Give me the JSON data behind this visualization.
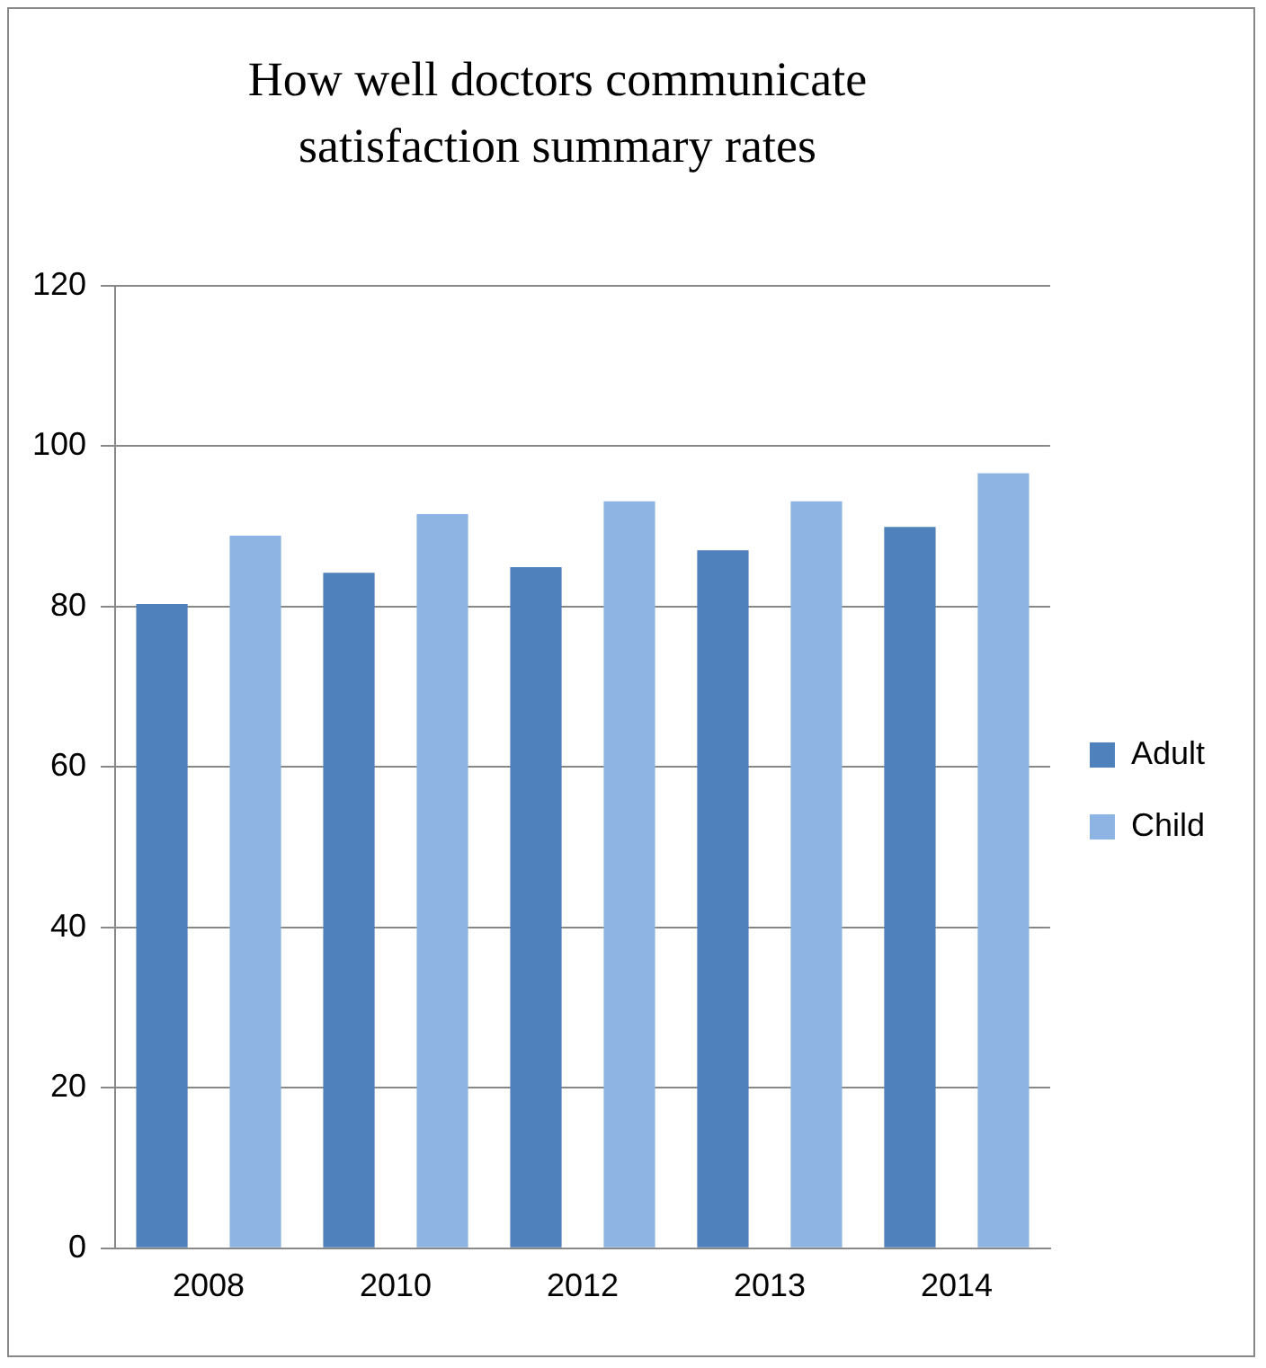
{
  "chart_data": {
    "type": "bar",
    "title": "How well doctors communicate satisfaction summary rates",
    "categories": [
      "2008",
      "2010",
      "2012",
      "2013",
      "2014"
    ],
    "series": [
      {
        "name": "Adult",
        "color": "#4f81bd",
        "values": [
          80.3,
          84.2,
          84.9,
          87.0,
          89.9
        ]
      },
      {
        "name": "Child",
        "color": "#8eb4e3",
        "values": [
          88.8,
          91.5,
          93.1,
          93.1,
          96.6
        ]
      }
    ],
    "ylim": [
      0,
      120
    ],
    "yticks": [
      0,
      20,
      40,
      60,
      80,
      100,
      120
    ],
    "grid": "y",
    "legend": "right"
  }
}
